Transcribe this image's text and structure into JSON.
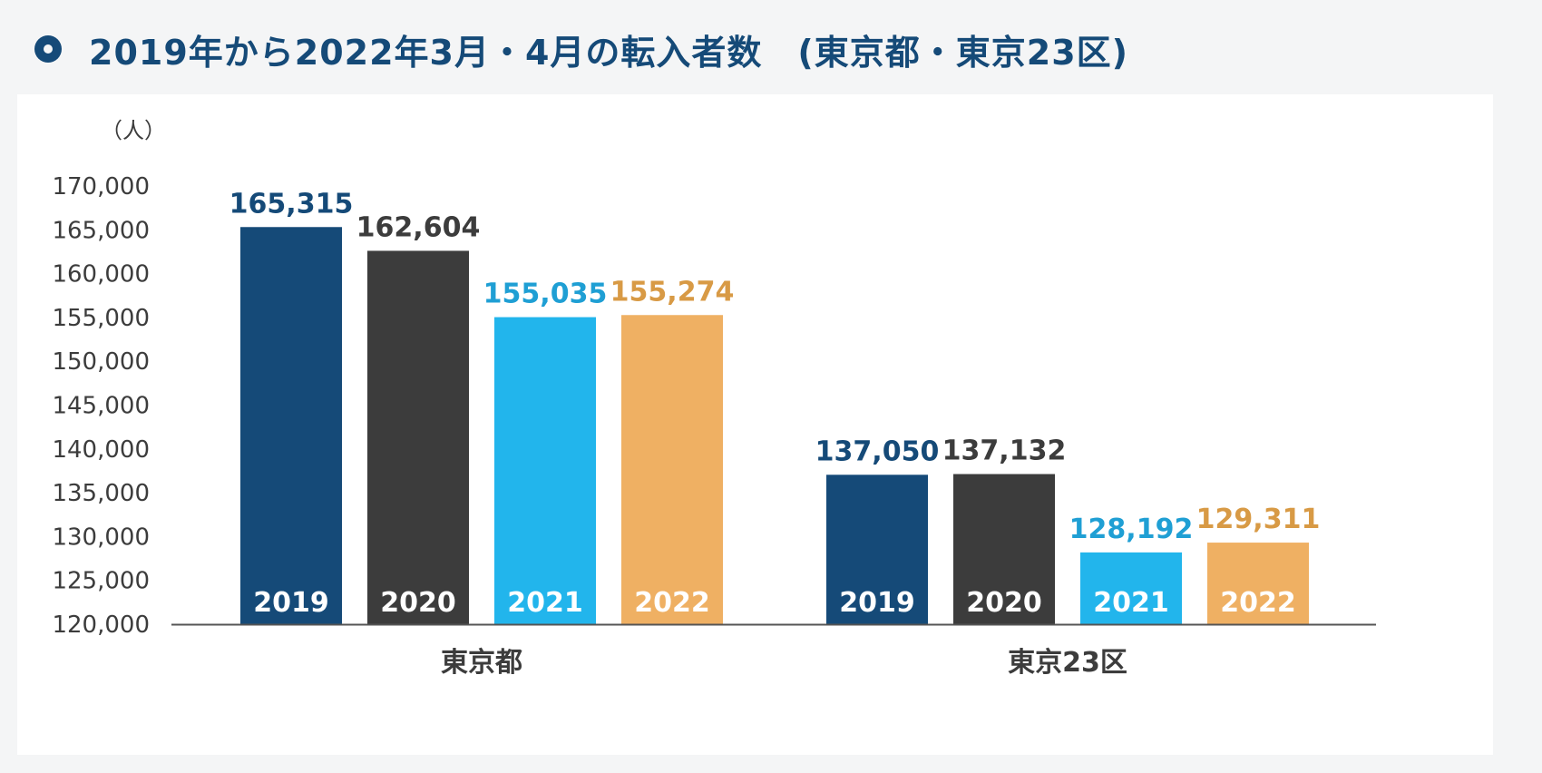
{
  "header": {
    "title": "2019年から2022年3月・4月の転入者数　(東京都・東京23区)"
  },
  "chart_data": {
    "type": "bar",
    "title": "2019年から2022年3月・4月の転入者数　(東京都・東京23区)",
    "unit_label": "（人）",
    "categories": [
      "東京都",
      "東京23区"
    ],
    "series": [
      {
        "name": "2019",
        "color": "#154a78",
        "label_color": "#154a78",
        "values": [
          165315,
          137050
        ]
      },
      {
        "name": "2020",
        "color": "#3c3c3c",
        "label_color": "#3c3c3c",
        "values": [
          162604,
          137132
        ]
      },
      {
        "name": "2021",
        "color": "#22b5ec",
        "label_color": "#1f9fd4",
        "values": [
          155035,
          128192
        ]
      },
      {
        "name": "2022",
        "color": "#efb063",
        "label_color": "#d89a45",
        "values": [
          155274,
          129311
        ]
      }
    ],
    "value_labels": [
      [
        "165,315",
        "137,050"
      ],
      [
        "162,604",
        "137,132"
      ],
      [
        "155,035",
        "128,192"
      ],
      [
        "155,274",
        "129,311"
      ]
    ],
    "ylim": [
      120000,
      170000
    ],
    "yticks": [
      120000,
      125000,
      130000,
      135000,
      140000,
      145000,
      150000,
      155000,
      160000,
      165000,
      170000
    ],
    "ytick_labels": [
      "120,000",
      "125,000",
      "130,000",
      "135,000",
      "140,000",
      "145,000",
      "150,000",
      "155,000",
      "160,000",
      "165,000",
      "170,000"
    ],
    "grid": false,
    "legend": "none"
  }
}
